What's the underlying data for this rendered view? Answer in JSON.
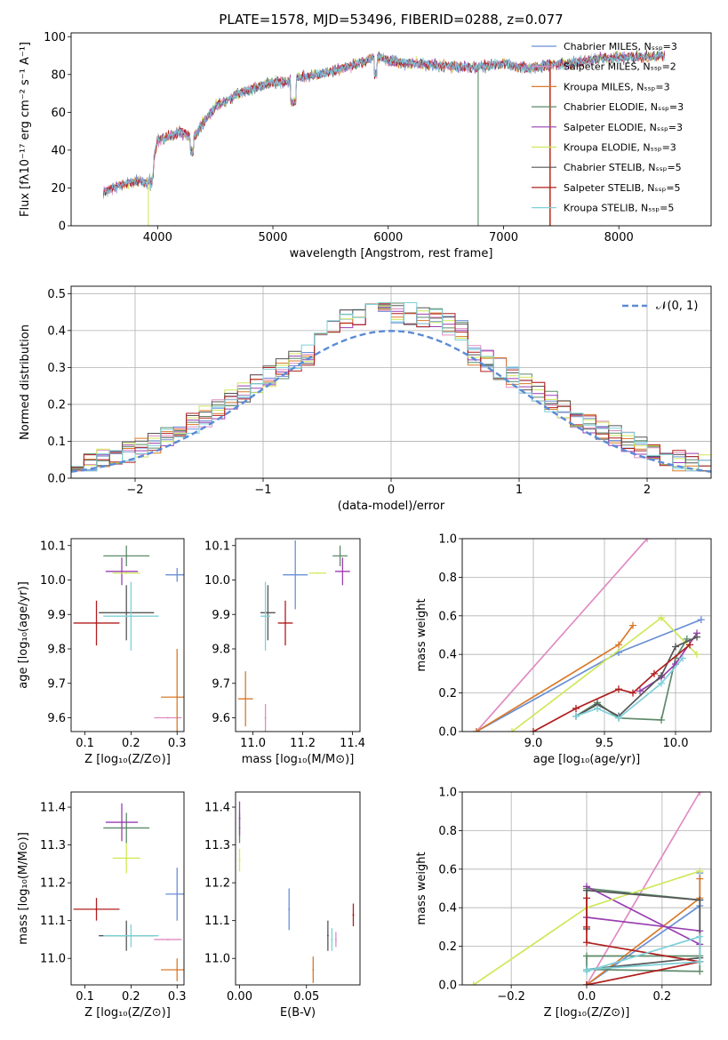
{
  "palette": [
    "#6a8fd6",
    "#e08bc2",
    "#d97a2a",
    "#5c8a6a",
    "#9a3fb0",
    "#cfe85a",
    "#555555",
    "#b01e1e",
    "#7dd0d8"
  ],
  "chart_data": [
    {
      "id": "spectrum",
      "type": "line",
      "title": "PLATE=1578, MJD=53496, FIBERID=0288, z=0.077",
      "xlabel": "wavelength [Angstrom, rest frame]",
      "ylabel": "Flux [fλ10⁻¹⁷ erg cm⁻² s⁻¹ A⁻¹]",
      "xlim": [
        3250,
        8800
      ],
      "ylim": [
        0,
        102
      ],
      "xticks": [
        4000,
        5000,
        6000,
        7000,
        8000
      ],
      "yticks": [
        0,
        20,
        40,
        60,
        80,
        100
      ],
      "grid": false,
      "legend_position": "top-right",
      "legend": [
        "Chabrier MILES, Nₛₛₚ=3",
        "Salpeter MILES, Nₛₛₚ=2",
        "Kroupa MILES, Nₛₛₚ=3",
        "Chabrier ELODIE, Nₛₛₚ=3",
        "Salpeter ELODIE, Nₛₛₚ=3",
        "Kroupa ELODIE, Nₛₛₚ=3",
        "Chabrier STELIB, Nₛₛₚ=5",
        "Salpeter STELIB, Nₛₛₚ=5",
        "Kroupa STELIB, Nₛₛₚ=5"
      ],
      "continuum": {
        "x": [
          3530,
          3700,
          3850,
          3920,
          4000,
          4100,
          4200,
          4300,
          4400,
          4500,
          4600,
          4700,
          4800,
          4900,
          5000,
          5100,
          5200,
          5400,
          5600,
          5800,
          5900,
          6000,
          6200,
          6400,
          6600,
          6800,
          7000,
          7200,
          7400,
          7600,
          7800,
          8000,
          8200,
          8400
        ],
        "y": [
          18,
          22,
          24,
          22,
          45,
          47,
          50,
          46,
          55,
          63,
          66,
          70,
          72,
          74,
          76,
          76,
          78,
          80,
          83,
          87,
          90,
          87,
          86,
          85,
          84,
          84,
          86,
          83,
          85,
          86,
          88,
          89,
          89,
          90
        ]
      },
      "drop_lines": [
        {
          "series": 5,
          "x": 3920,
          "from": 22,
          "to": 0
        },
        {
          "series": 3,
          "x": 6780,
          "from": 84,
          "to": 0
        },
        {
          "series": 2,
          "x": 7400,
          "from": 85,
          "to": 0
        },
        {
          "series": 7,
          "x": 7405,
          "from": 85,
          "to": 0
        }
      ]
    },
    {
      "id": "residual-hist",
      "type": "histogram",
      "xlabel": "(data-model)/error",
      "ylabel": "Normed distribution",
      "xlim": [
        -2.5,
        2.5
      ],
      "ylim": [
        0,
        0.52
      ],
      "xticks": [
        -2,
        -1,
        0,
        1,
        2
      ],
      "yticks": [
        0.0,
        0.1,
        0.2,
        0.3,
        0.4,
        0.5
      ],
      "grid": true,
      "bin_width": 0.1,
      "legend": [
        "𝒩(0, 1)"
      ],
      "legend_position": "top-right",
      "reference": {
        "name": "𝒩(0, 1)",
        "mean": 0,
        "std": 1
      }
    },
    {
      "id": "age-vs-Z",
      "type": "scatter",
      "xlabel": "Z [log₁₀(Z/Z⊙)]",
      "ylabel": "age  [log₁₀(age/yr)]",
      "xlim": [
        0.07,
        0.315
      ],
      "ylim": [
        9.56,
        10.12
      ],
      "xticks": [
        0.1,
        0.2,
        0.3
      ],
      "yticks": [
        9.6,
        9.7,
        9.8,
        9.9,
        10.0,
        10.1
      ],
      "points": [
        {
          "s": 0,
          "x": 0.3,
          "y": 10.015,
          "xerr": 0.025,
          "yerr": 0.02
        },
        {
          "s": 1,
          "x": 0.28,
          "y": 9.6,
          "xerr": 0.03,
          "yerr": 0.0
        },
        {
          "s": 2,
          "x": 0.3,
          "y": 9.66,
          "xerr": 0.035,
          "yerr": 0.14
        },
        {
          "s": 3,
          "x": 0.19,
          "y": 10.07,
          "xerr": 0.05,
          "yerr": 0.03
        },
        {
          "s": 4,
          "x": 0.18,
          "y": 10.025,
          "xerr": 0.035,
          "yerr": 0.04
        },
        {
          "s": 5,
          "x": 0.19,
          "y": 10.02,
          "xerr": 0.03,
          "yerr": 0.0
        },
        {
          "s": 6,
          "x": 0.19,
          "y": 9.905,
          "xerr": 0.06,
          "yerr": 0.08
        },
        {
          "s": 7,
          "x": 0.125,
          "y": 9.875,
          "xerr": 0.05,
          "yerr": 0.065
        },
        {
          "s": 8,
          "x": 0.2,
          "y": 9.895,
          "xerr": 0.06,
          "yerr": 0.1
        }
      ]
    },
    {
      "id": "age-vs-mass",
      "type": "scatter",
      "xlabel": "mass [log₁₀(M/M⊙)]",
      "ylabel": "",
      "xlim": [
        10.93,
        11.43
      ],
      "ylim": [
        9.56,
        10.12
      ],
      "xticks": [
        11.0,
        11.2,
        11.4
      ],
      "yticks": [
        9.6,
        9.7,
        9.8,
        9.9,
        10.0,
        10.1
      ],
      "points": [
        {
          "s": 0,
          "x": 11.17,
          "y": 10.015,
          "xerr": 0.05,
          "yerr": 0.1
        },
        {
          "s": 1,
          "x": 11.05,
          "y": 9.6,
          "xerr": 0.0,
          "yerr": 0.04
        },
        {
          "s": 2,
          "x": 10.97,
          "y": 9.655,
          "xerr": 0.03,
          "yerr": 0.08
        },
        {
          "s": 3,
          "x": 11.35,
          "y": 10.07,
          "xerr": 0.03,
          "yerr": 0.03
        },
        {
          "s": 4,
          "x": 11.36,
          "y": 10.025,
          "xerr": 0.03,
          "yerr": 0.04
        },
        {
          "s": 5,
          "x": 11.26,
          "y": 10.02,
          "xerr": 0.035,
          "yerr": 0.0
        },
        {
          "s": 6,
          "x": 11.06,
          "y": 9.905,
          "xerr": 0.03,
          "yerr": 0.08
        },
        {
          "s": 7,
          "x": 11.13,
          "y": 9.875,
          "xerr": 0.03,
          "yerr": 0.065
        },
        {
          "s": 8,
          "x": 11.05,
          "y": 9.895,
          "xerr": 0.02,
          "yerr": 0.1
        }
      ]
    },
    {
      "id": "massweight-vs-age",
      "type": "line",
      "xlabel": "age  [log₁₀(age/yr)]",
      "ylabel": "mass weight",
      "xlim": [
        8.5,
        10.25
      ],
      "ylim": [
        0,
        1
      ],
      "xticks": [
        9.0,
        9.5,
        10.0
      ],
      "yticks": [
        0.0,
        0.2,
        0.4,
        0.6,
        0.8,
        1.0
      ],
      "grid": true,
      "series": [
        {
          "s": 0,
          "x": [
            8.6,
            9.6,
            10.18
          ],
          "y": [
            0.0,
            0.41,
            0.58
          ]
        },
        {
          "s": 1,
          "x": [
            8.6,
            9.8
          ],
          "y": [
            0.0,
            1.0
          ]
        },
        {
          "s": 2,
          "x": [
            8.6,
            9.6,
            9.7
          ],
          "y": [
            0.0,
            0.45,
            0.55
          ]
        },
        {
          "s": 3,
          "x": [
            9.3,
            9.45,
            9.6,
            9.9,
            10.0,
            10.08
          ],
          "y": [
            0.08,
            0.15,
            0.07,
            0.06,
            0.38,
            0.48
          ]
        },
        {
          "s": 4,
          "x": [
            9.75,
            9.9,
            10.0,
            10.15
          ],
          "y": [
            0.21,
            0.28,
            0.35,
            0.51
          ]
        },
        {
          "s": 5,
          "x": [
            8.85,
            9.9,
            10.15
          ],
          "y": [
            0.0,
            0.59,
            0.4
          ]
        },
        {
          "s": 6,
          "x": [
            9.3,
            9.45,
            9.6,
            9.9,
            10.0,
            10.15
          ],
          "y": [
            0.08,
            0.14,
            0.08,
            0.29,
            0.44,
            0.49
          ]
        },
        {
          "s": 7,
          "x": [
            9.0,
            9.3,
            9.6,
            9.7,
            9.85,
            10.1
          ],
          "y": [
            0.0,
            0.12,
            0.22,
            0.2,
            0.3,
            0.45
          ]
        },
        {
          "s": 8,
          "x": [
            9.3,
            9.45,
            9.6,
            9.9,
            10.05
          ],
          "y": [
            0.08,
            0.12,
            0.07,
            0.25,
            0.38
          ]
        }
      ]
    },
    {
      "id": "mass-vs-Z",
      "type": "scatter",
      "xlabel": "Z [log₁₀(Z/Z⊙)]",
      "ylabel": "mass [log₁₀(M/M⊙)]",
      "xlim": [
        0.07,
        0.315
      ],
      "ylim": [
        10.93,
        11.44
      ],
      "xticks": [
        0.1,
        0.2,
        0.3
      ],
      "yticks": [
        11.0,
        11.1,
        11.2,
        11.3,
        11.4
      ],
      "points": [
        {
          "s": 0,
          "x": 0.3,
          "y": 11.17,
          "xerr": 0.025,
          "yerr": 0.07
        },
        {
          "s": 1,
          "x": 0.28,
          "y": 11.05,
          "xerr": 0.03,
          "yerr": 0.0
        },
        {
          "s": 2,
          "x": 0.3,
          "y": 10.97,
          "xerr": 0.035,
          "yerr": 0.03
        },
        {
          "s": 3,
          "x": 0.19,
          "y": 11.345,
          "xerr": 0.05,
          "yerr": 0.04
        },
        {
          "s": 4,
          "x": 0.18,
          "y": 11.36,
          "xerr": 0.035,
          "yerr": 0.05
        },
        {
          "s": 5,
          "x": 0.19,
          "y": 11.265,
          "xerr": 0.03,
          "yerr": 0.04
        },
        {
          "s": 6,
          "x": 0.19,
          "y": 11.06,
          "xerr": 0.06,
          "yerr": 0.04
        },
        {
          "s": 7,
          "x": 0.125,
          "y": 11.13,
          "xerr": 0.05,
          "yerr": 0.03
        },
        {
          "s": 8,
          "x": 0.2,
          "y": 11.06,
          "xerr": 0.06,
          "yerr": 0.03
        }
      ]
    },
    {
      "id": "mass-vs-EBV",
      "type": "scatter",
      "xlabel": "E(B-V)",
      "ylabel": "",
      "xlim": [
        -0.003,
        0.09
      ],
      "ylim": [
        10.93,
        11.44
      ],
      "xticks": [
        0.0,
        0.05
      ],
      "yticks": [
        11.0,
        11.1,
        11.2,
        11.3,
        11.4
      ],
      "points": [
        {
          "s": 0,
          "x": 0.037,
          "y": 11.13,
          "xerr": 0.0,
          "yerr": 0.055
        },
        {
          "s": 1,
          "x": 0.072,
          "y": 11.05,
          "xerr": 0.0,
          "yerr": 0.02
        },
        {
          "s": 2,
          "x": 0.055,
          "y": 10.97,
          "xerr": 0.0,
          "yerr": 0.035
        },
        {
          "s": 3,
          "x": 0.0,
          "y": 11.345,
          "xerr": 0.0,
          "yerr": 0.04
        },
        {
          "s": 4,
          "x": 0.0,
          "y": 11.37,
          "xerr": 0.0,
          "yerr": 0.045
        },
        {
          "s": 5,
          "x": 0.0,
          "y": 11.26,
          "xerr": 0.0,
          "yerr": 0.03
        },
        {
          "s": 6,
          "x": 0.066,
          "y": 11.06,
          "xerr": 0.0,
          "yerr": 0.04
        },
        {
          "s": 7,
          "x": 0.085,
          "y": 11.115,
          "xerr": 0.0,
          "yerr": 0.03
        },
        {
          "s": 8,
          "x": 0.069,
          "y": 11.05,
          "xerr": 0.0,
          "yerr": 0.03
        }
      ]
    },
    {
      "id": "massweight-vs-Z",
      "type": "line",
      "xlabel": "Z [log₁₀(Z/Z⊙)]",
      "ylabel": "mass weight",
      "xlim": [
        -0.33,
        0.33
      ],
      "ylim": [
        0,
        1
      ],
      "xticks": [
        -0.2,
        0.0,
        0.2
      ],
      "yticks": [
        0.0,
        0.2,
        0.4,
        0.6,
        0.8,
        1.0
      ],
      "grid": true,
      "series": [
        {
          "s": 0,
          "x": [
            0.0,
            0.3,
            0.3
          ],
          "y": [
            0.0,
            0.41,
            0.58
          ]
        },
        {
          "s": 1,
          "x": [
            0.0,
            0.3
          ],
          "y": [
            0.0,
            1.0
          ]
        },
        {
          "s": 2,
          "x": [
            0.0,
            0.3,
            0.3
          ],
          "y": [
            0.0,
            0.45,
            0.55
          ]
        },
        {
          "s": 3,
          "x": [
            0.0,
            0.3,
            0.3,
            0.0,
            0.0,
            0.3
          ],
          "y": [
            0.5,
            0.44,
            0.07,
            0.08,
            0.15,
            0.15
          ]
        },
        {
          "s": 4,
          "x": [
            0.0,
            0.3,
            0.3,
            0.0
          ],
          "y": [
            0.51,
            0.21,
            0.28,
            0.35
          ]
        },
        {
          "s": 5,
          "x": [
            -0.3,
            0.0,
            0.3
          ],
          "y": [
            0.0,
            0.4,
            0.59
          ]
        },
        {
          "s": 6,
          "x": [
            0.0,
            0.3,
            0.3,
            0.0,
            0.0
          ],
          "y": [
            0.08,
            0.14,
            0.44,
            0.49,
            0.29
          ]
        },
        {
          "s": 7,
          "x": [
            0.0,
            0.3,
            0.0,
            0.0,
            0.0
          ],
          "y": [
            0.0,
            0.12,
            0.22,
            0.3,
            0.45
          ]
        },
        {
          "s": 8,
          "x": [
            0.0,
            0.3,
            0.3,
            0.0
          ],
          "y": [
            0.08,
            0.12,
            0.25,
            0.07
          ]
        }
      ]
    }
  ]
}
